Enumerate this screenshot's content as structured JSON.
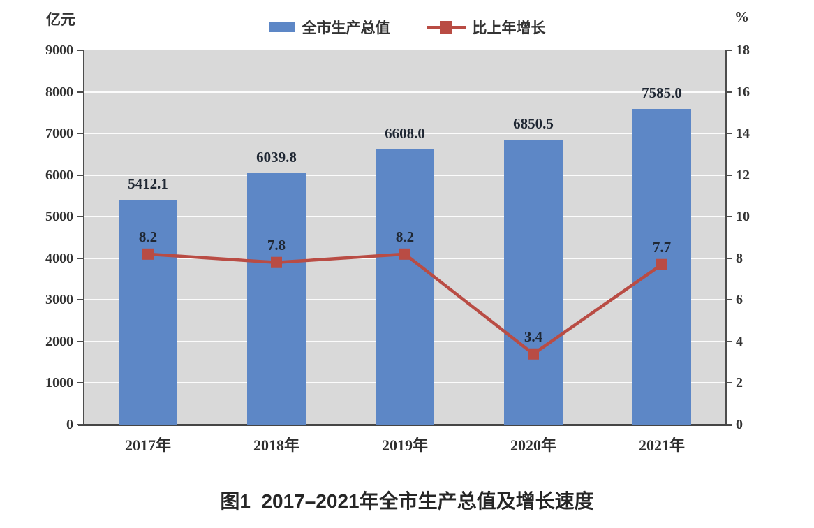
{
  "chart_data": {
    "type": "bar",
    "combo": "bar+line",
    "title": "图1  2017–2021年全市生产总值及增长速度",
    "categories": [
      "2017年",
      "2018年",
      "2019年",
      "2020年",
      "2021年"
    ],
    "series": [
      {
        "name": "全市生产总值",
        "type": "bar",
        "axis": "left",
        "unit": "亿元",
        "color": "#5d87c6",
        "values": [
          5412.1,
          6039.8,
          6608.0,
          6850.5,
          7585.0
        ]
      },
      {
        "name": "比上年增长",
        "type": "line",
        "marker": "square",
        "axis": "right",
        "unit": "%",
        "color": "#b94c44",
        "values": [
          8.2,
          7.8,
          8.2,
          3.4,
          7.7
        ]
      }
    ],
    "left_axis": {
      "label": "亿元",
      "min": 0,
      "max": 9000,
      "step": 1000
    },
    "right_axis": {
      "label": "%",
      "min": 0,
      "max": 18,
      "step": 2
    },
    "grid": true,
    "legend_position": "top",
    "plot_area_bg": "#d9d9d9",
    "value_label_decimals": 1
  }
}
